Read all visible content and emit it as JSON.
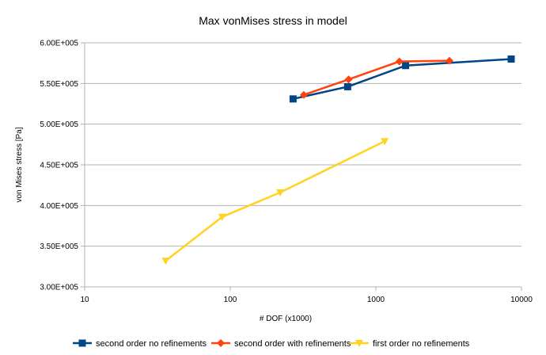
{
  "chart_data": {
    "type": "line",
    "title": "Max vonMises stress in model",
    "xlabel": "# DOF (x1000)",
    "ylabel": "von Mises stress [Pa]",
    "xscale": "log",
    "xlim": [
      10,
      10000
    ],
    "ylim": [
      300000,
      600000
    ],
    "x_ticks": [
      10,
      100,
      1000,
      10000
    ],
    "x_tick_labels": [
      "10",
      "100",
      "1000",
      "10000"
    ],
    "y_ticks": [
      300000,
      350000,
      400000,
      450000,
      500000,
      550000,
      600000
    ],
    "y_tick_labels": [
      "3.00E+005",
      "3.50E+005",
      "4.00E+005",
      "4.50E+005",
      "5.00E+005",
      "5.50E+005",
      "6.00E+005"
    ],
    "grid": true,
    "legend_position": "bottom",
    "series": [
      {
        "name": "second order no refinements",
        "color": "#004586",
        "marker": "square",
        "points": [
          [
            270,
            531000
          ],
          [
            640,
            546000
          ],
          [
            1600,
            572000
          ],
          [
            8500,
            580000
          ]
        ]
      },
      {
        "name": "second order with refinements",
        "color": "#ff420e",
        "marker": "diamond",
        "points": [
          [
            320,
            536000
          ],
          [
            650,
            555000
          ],
          [
            1450,
            577000
          ],
          [
            3200,
            578000
          ]
        ]
      },
      {
        "name": "first order no refinements",
        "color": "#ffd320",
        "marker": "triangle-down",
        "points": [
          [
            36,
            332000
          ],
          [
            88,
            386000
          ],
          [
            220,
            416000
          ],
          [
            1150,
            479000
          ]
        ]
      }
    ]
  }
}
